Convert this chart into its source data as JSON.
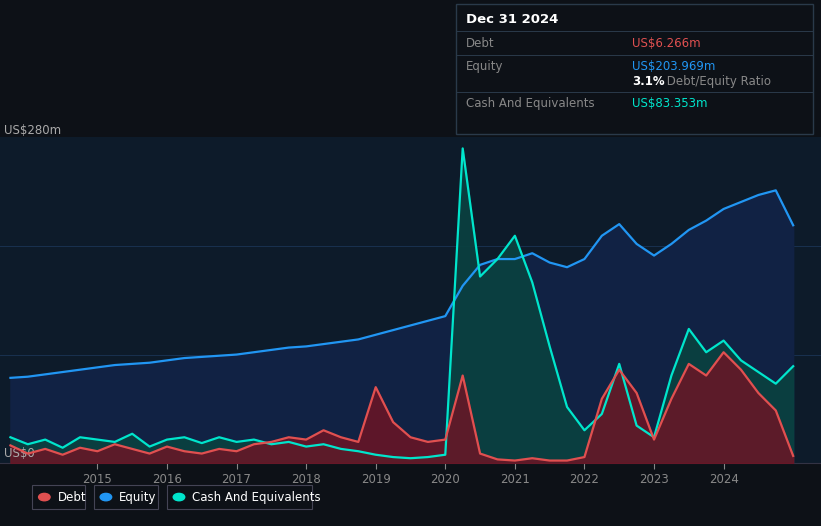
{
  "bg_color": "#0d1117",
  "plot_bg_color": "#0d1b2a",
  "grid_color": "#1e3a5f",
  "title_label": "US$280m",
  "zero_label": "US$0",
  "ymax": 280,
  "ymin": 0,
  "xmin": 2013.6,
  "xmax": 2025.4,
  "xtick_years": [
    2015,
    2016,
    2017,
    2018,
    2019,
    2020,
    2021,
    2022,
    2023,
    2024
  ],
  "equity_color": "#2196f3",
  "equity_fill": "#112244",
  "debt_color": "#e05050",
  "debt_fill": "#6b1525",
  "cash_color": "#00e5cc",
  "cash_fill": "#0a4040",
  "equity_x": [
    2013.75,
    2014.0,
    2014.25,
    2014.5,
    2014.75,
    2015.0,
    2015.25,
    2015.5,
    2015.75,
    2016.0,
    2016.25,
    2016.5,
    2016.75,
    2017.0,
    2017.25,
    2017.5,
    2017.75,
    2018.0,
    2018.25,
    2018.5,
    2018.75,
    2019.0,
    2019.25,
    2019.5,
    2019.75,
    2020.0,
    2020.25,
    2020.5,
    2020.75,
    2021.0,
    2021.25,
    2021.5,
    2021.75,
    2022.0,
    2022.25,
    2022.5,
    2022.75,
    2023.0,
    2023.25,
    2023.5,
    2023.75,
    2024.0,
    2024.25,
    2024.5,
    2024.75,
    2025.0
  ],
  "equity_y": [
    73,
    74,
    76,
    78,
    80,
    82,
    84,
    85,
    86,
    88,
    90,
    91,
    92,
    93,
    95,
    97,
    99,
    100,
    102,
    104,
    106,
    110,
    114,
    118,
    122,
    126,
    152,
    170,
    175,
    175,
    180,
    172,
    168,
    175,
    195,
    205,
    188,
    178,
    188,
    200,
    208,
    218,
    224,
    230,
    234,
    204
  ],
  "debt_x": [
    2013.75,
    2014.0,
    2014.25,
    2014.5,
    2014.75,
    2015.0,
    2015.25,
    2015.5,
    2015.75,
    2016.0,
    2016.25,
    2016.5,
    2016.75,
    2017.0,
    2017.25,
    2017.5,
    2017.75,
    2018.0,
    2018.25,
    2018.5,
    2018.75,
    2019.0,
    2019.25,
    2019.5,
    2019.75,
    2020.0,
    2020.25,
    2020.5,
    2020.75,
    2021.0,
    2021.25,
    2021.5,
    2021.75,
    2022.0,
    2022.25,
    2022.5,
    2022.75,
    2023.0,
    2023.25,
    2023.5,
    2023.75,
    2024.0,
    2024.25,
    2024.5,
    2024.75,
    2025.0
  ],
  "debt_y": [
    15,
    8,
    12,
    7,
    13,
    10,
    16,
    12,
    8,
    14,
    10,
    8,
    12,
    10,
    16,
    18,
    22,
    20,
    28,
    22,
    18,
    65,
    35,
    22,
    18,
    20,
    75,
    8,
    3,
    2,
    4,
    2,
    2,
    5,
    55,
    80,
    60,
    20,
    55,
    85,
    75,
    95,
    80,
    60,
    45,
    6
  ],
  "cash_x": [
    2013.75,
    2014.0,
    2014.25,
    2014.5,
    2014.75,
    2015.0,
    2015.25,
    2015.5,
    2015.75,
    2016.0,
    2016.25,
    2016.5,
    2016.75,
    2017.0,
    2017.25,
    2017.5,
    2017.75,
    2018.0,
    2018.25,
    2018.5,
    2018.75,
    2019.0,
    2019.25,
    2019.5,
    2019.75,
    2020.0,
    2020.25,
    2020.5,
    2020.75,
    2021.0,
    2021.25,
    2021.5,
    2021.75,
    2022.0,
    2022.25,
    2022.5,
    2022.75,
    2023.0,
    2023.25,
    2023.5,
    2023.75,
    2024.0,
    2024.25,
    2024.5,
    2024.75,
    2025.0
  ],
  "cash_y": [
    22,
    16,
    20,
    13,
    22,
    20,
    18,
    25,
    14,
    20,
    22,
    17,
    22,
    18,
    20,
    16,
    18,
    14,
    16,
    12,
    10,
    7,
    5,
    4,
    5,
    7,
    270,
    160,
    175,
    195,
    155,
    100,
    48,
    28,
    42,
    85,
    32,
    22,
    75,
    115,
    95,
    105,
    88,
    78,
    68,
    83
  ],
  "info_box": {
    "date": "Dec 31 2024",
    "debt_label": "Debt",
    "debt_value": "US$6.266m",
    "equity_label": "Equity",
    "equity_value": "US$203.969m",
    "ratio_bold": "3.1%",
    "ratio_rest": " Debt/Equity Ratio",
    "cash_label": "Cash And Equivalents",
    "cash_value": "US$83.353m"
  },
  "legend_items": [
    {
      "label": "Debt",
      "color": "#e05050"
    },
    {
      "label": "Equity",
      "color": "#2196f3"
    },
    {
      "label": "Cash And Equivalents",
      "color": "#00e5cc"
    }
  ]
}
